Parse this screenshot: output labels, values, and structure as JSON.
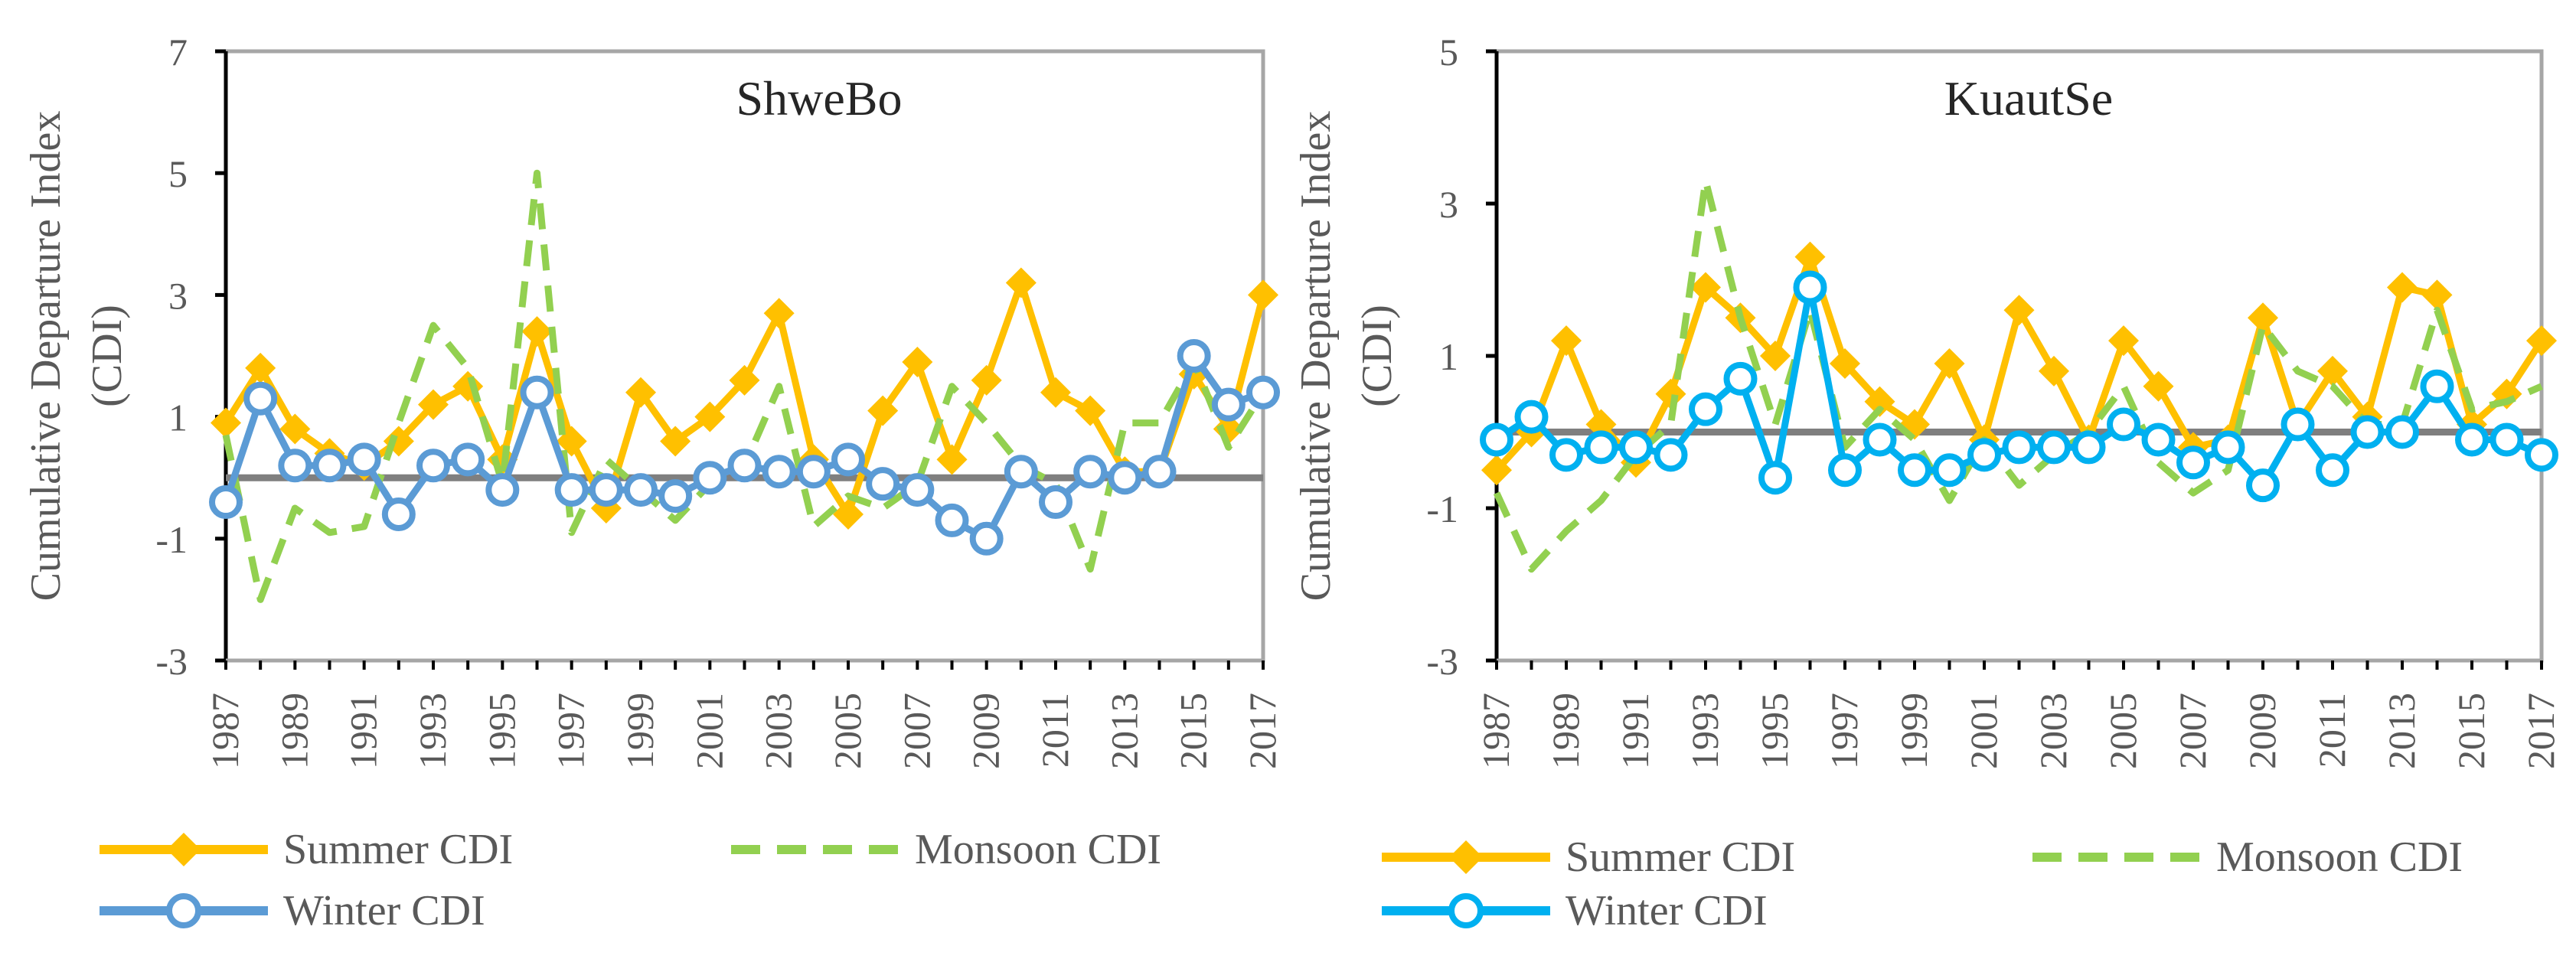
{
  "colors": {
    "summer": "#FFC000",
    "monsoon": "#92D050",
    "winter_left": "#5B9BD5",
    "winter_right": "#00B0F0",
    "marker_fill": "#FFFFFF",
    "zero_line": "#7F7F7F",
    "frame": "#A6A6A6",
    "axis": "#000000",
    "text": "#595959"
  },
  "chart_data": [
    {
      "type": "line",
      "title": "ShweBo",
      "ylabel": "Cumulative Departure Index (CDI)",
      "ylabel_lines": [
        "Cumulative Departure Index",
        "(CDI)"
      ],
      "xlabel": "",
      "ylim": [
        -3,
        7
      ],
      "yticks": [
        -3,
        -1,
        1,
        3,
        5,
        7
      ],
      "x": [
        1987,
        1988,
        1989,
        1990,
        1991,
        1992,
        1993,
        1994,
        1995,
        1996,
        1997,
        1998,
        1999,
        2000,
        2001,
        2002,
        2003,
        2004,
        2005,
        2006,
        2007,
        2008,
        2009,
        2010,
        2011,
        2012,
        2013,
        2014,
        2015,
        2016,
        2017
      ],
      "xtick_labels": [
        "1987",
        "1989",
        "1991",
        "1993",
        "1995",
        "1997",
        "1999",
        "2001",
        "2003",
        "2005",
        "2007",
        "2009",
        "2011",
        "2013",
        "2015",
        "2017"
      ],
      "legend": [
        "Summer CDI",
        "Monsoon CDI",
        "Winter CDI"
      ],
      "series": [
        {
          "name": "Summer CDI",
          "values": [
            0.9,
            1.8,
            0.8,
            0.4,
            0.2,
            0.6,
            1.2,
            1.5,
            0.3,
            2.4,
            0.6,
            -0.5,
            1.4,
            0.6,
            1.0,
            1.6,
            2.7,
            0.3,
            -0.6,
            1.1,
            1.9,
            0.3,
            1.6,
            3.2,
            1.4,
            1.1,
            0.1,
            0.1,
            1.7,
            0.8,
            3.0
          ]
        },
        {
          "name": "Monsoon CDI",
          "values": [
            0.7,
            -2.0,
            -0.5,
            -0.9,
            -0.8,
            0.9,
            2.5,
            1.8,
            -0.1,
            5.0,
            -0.9,
            0.3,
            -0.2,
            -0.7,
            -0.1,
            0.2,
            1.5,
            -0.8,
            -0.3,
            -0.5,
            -0.1,
            1.5,
            0.9,
            0.2,
            -0.1,
            -1.5,
            0.9,
            0.9,
            1.9,
            0.5,
            1.4
          ]
        },
        {
          "name": "Winter CDI",
          "values": [
            -0.4,
            1.3,
            0.2,
            0.2,
            0.3,
            -0.6,
            0.2,
            0.3,
            -0.2,
            1.4,
            -0.2,
            -0.2,
            -0.2,
            -0.3,
            0.0,
            0.2,
            0.1,
            0.1,
            0.3,
            -0.1,
            -0.2,
            -0.7,
            -1.0,
            0.1,
            -0.4,
            0.1,
            0.0,
            0.1,
            2.0,
            1.2,
            1.4
          ]
        }
      ]
    },
    {
      "type": "line",
      "title": "KuautSe",
      "ylabel": "Cumulative Departure Index (CDI)",
      "ylabel_lines": [
        "Cumulative Departure Index",
        "(CDI)"
      ],
      "xlabel": "",
      "ylim": [
        -3,
        5
      ],
      "yticks": [
        -3,
        -1,
        1,
        3,
        5
      ],
      "x": [
        1987,
        1988,
        1989,
        1990,
        1991,
        1992,
        1993,
        1994,
        1995,
        1996,
        1997,
        1998,
        1999,
        2000,
        2001,
        2002,
        2003,
        2004,
        2005,
        2006,
        2007,
        2008,
        2009,
        2010,
        2011,
        2012,
        2013,
        2014,
        2015,
        2016,
        2017
      ],
      "xtick_labels": [
        "1987",
        "1989",
        "1991",
        "1993",
        "1995",
        "1997",
        "1999",
        "2001",
        "2003",
        "2005",
        "2007",
        "2009",
        "2011",
        "2013",
        "2015",
        "2017"
      ],
      "legend": [
        "Summer CDI",
        "Monsoon CDI",
        "Winter CDI"
      ],
      "series": [
        {
          "name": "Summer CDI",
          "values": [
            -0.5,
            0.0,
            1.2,
            0.1,
            -0.4,
            0.5,
            1.9,
            1.5,
            1.0,
            2.3,
            0.9,
            0.4,
            0.1,
            0.9,
            -0.1,
            1.6,
            0.8,
            -0.1,
            1.2,
            0.6,
            -0.2,
            -0.1,
            1.5,
            0.1,
            0.8,
            0.2,
            1.9,
            1.8,
            0.1,
            0.5,
            1.2
          ]
        },
        {
          "name": "Monsoon CDI",
          "values": [
            -0.8,
            -1.8,
            -1.3,
            -0.9,
            -0.3,
            0.1,
            3.3,
            1.5,
            0.1,
            1.6,
            -0.2,
            0.3,
            -0.1,
            -0.9,
            -0.1,
            -0.7,
            -0.3,
            0.0,
            0.6,
            -0.4,
            -0.8,
            -0.5,
            1.4,
            0.8,
            0.6,
            0.1,
            0.1,
            1.6,
            0.3,
            0.4,
            0.6
          ]
        },
        {
          "name": "Winter CDI",
          "values": [
            -0.1,
            0.2,
            -0.3,
            -0.2,
            -0.2,
            -0.3,
            0.3,
            0.7,
            -0.6,
            1.9,
            -0.5,
            -0.1,
            -0.5,
            -0.5,
            -0.3,
            -0.2,
            -0.2,
            -0.2,
            0.1,
            -0.1,
            -0.4,
            -0.2,
            -0.7,
            0.1,
            -0.5,
            0.0,
            0.0,
            0.6,
            -0.1,
            -0.1,
            -0.3
          ]
        }
      ]
    }
  ]
}
